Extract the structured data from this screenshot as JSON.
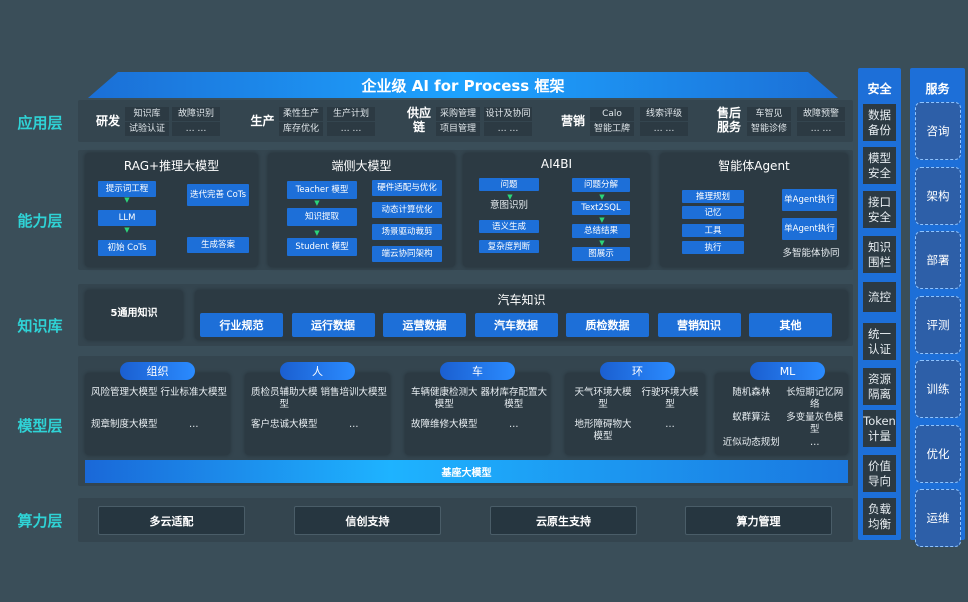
{
  "title": "企业级 AI for Process 框架",
  "layers": [
    "应用层",
    "能力层",
    "知识库",
    "模型层",
    "算力层"
  ],
  "application": [
    {
      "group": "研发",
      "items": [
        "知识库",
        "故障识别",
        "试验认证",
        "… …"
      ]
    },
    {
      "group": "生产",
      "items": [
        "柔性生产",
        "生产计划",
        "库存优化",
        "… …"
      ]
    },
    {
      "group": "供应链",
      "items": [
        "采购管理",
        "设计及协同",
        "项目管理",
        "… …"
      ]
    },
    {
      "group": "营销",
      "items": [
        "Calo",
        "线索评级",
        "智能工牌",
        "… …"
      ]
    },
    {
      "group": "售后服务",
      "items": [
        "车智见",
        "故障预警",
        "智能诊修",
        "… …"
      ]
    }
  ],
  "capability": {
    "rag": {
      "title": "RAG+推理大模型",
      "left": [
        "提示词工程",
        "LLM",
        "初始 CoTs"
      ],
      "right": [
        "迭代完善 CoTs",
        "生成答案"
      ]
    },
    "edge": {
      "title": "端侧大模型",
      "left": [
        "Teacher 模型",
        "知识提取",
        "Student 模型"
      ],
      "right": [
        "硬件适配与优化",
        "动态计算优化",
        "场景驱动裁剪",
        "端云协同架构"
      ]
    },
    "ai4bi": {
      "title": "AI4BI",
      "left_box": "问题",
      "left_text": "意图识别",
      "left": [
        "语义生成",
        "复杂度判断"
      ],
      "right": [
        "问题分解",
        "Text2SQL",
        "总结结果",
        "图展示"
      ]
    },
    "agent": {
      "title": "智能体Agent",
      "left": [
        "推理规划",
        "记忆",
        "工具",
        "执行"
      ],
      "right": [
        "单Agent执行",
        "单Agent执行"
      ],
      "footer": "多智能体协同"
    }
  },
  "knowledge": {
    "general": "5通用知识",
    "auto_title": "汽车知识",
    "items": [
      "行业规范",
      "运行数据",
      "运营数据",
      "汽车数据",
      "质检数据",
      "营销知识",
      "其他"
    ]
  },
  "models": [
    {
      "name": "组织",
      "items": [
        "风险管理大模型",
        "行业标准大模型",
        "规章制度大模型",
        "…"
      ]
    },
    {
      "name": "人",
      "items": [
        "质检员辅助大模型",
        "销售培训大模型",
        "客户忠诚大模型",
        "…"
      ]
    },
    {
      "name": "车",
      "items": [
        "车辆健康检测大模型",
        "器材库存配置大模型",
        "故障维修大模型",
        "…"
      ]
    },
    {
      "name": "环",
      "items": [
        "天气环境大模型",
        "行驶环境大模型",
        "地形障碍物大模型",
        "…"
      ]
    },
    {
      "name": "ML",
      "items": [
        "随机森林",
        "长短期记忆网络",
        "蚁群算法",
        "多变量灰色模型",
        "近似动态规划",
        "…"
      ]
    }
  ],
  "base_model": "基座大模型",
  "compute": [
    "多云适配",
    "信创支持",
    "云原生支持",
    "算力管理"
  ],
  "security": {
    "title": "安全",
    "items": [
      "数据备份",
      "模型安全",
      "接口安全",
      "知识围栏",
      "流控",
      "统一认证",
      "资源隔离",
      "Token计量",
      "价值导向",
      "负载均衡"
    ]
  },
  "service": {
    "title": "服务",
    "items": [
      "咨询",
      "架构",
      "部署",
      "评测",
      "训练",
      "优化",
      "运维"
    ]
  }
}
